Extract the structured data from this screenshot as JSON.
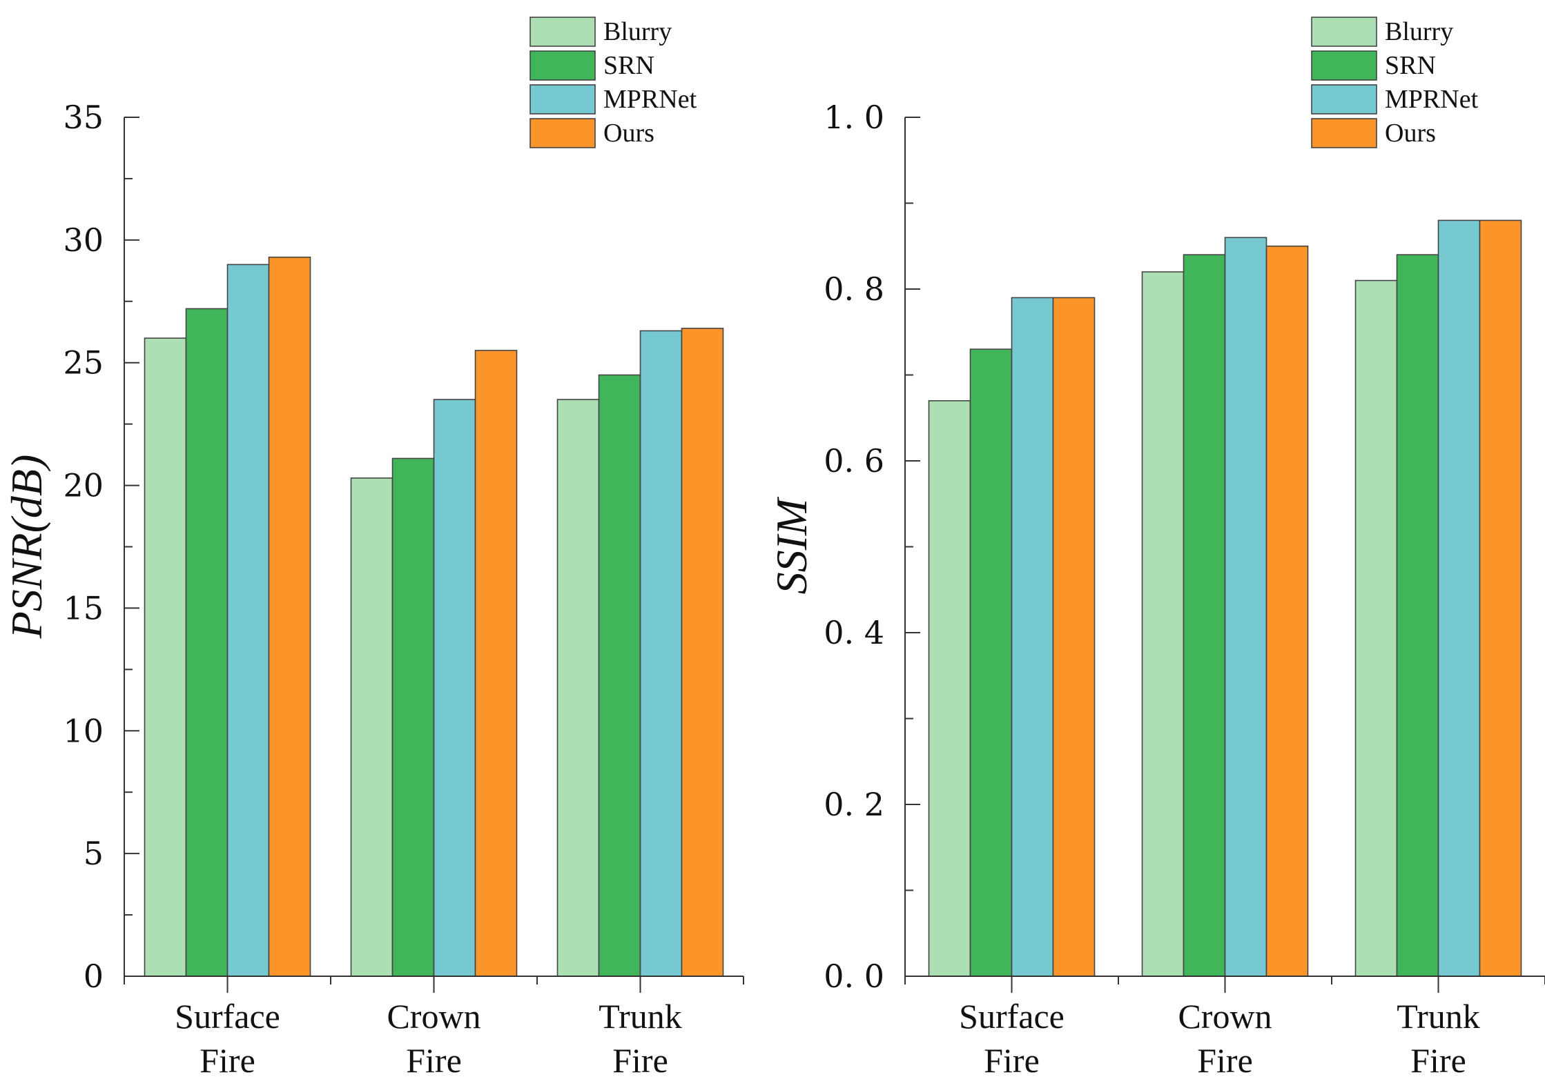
{
  "chart_data": [
    {
      "type": "bar",
      "ylabel": "PSNR(dB)",
      "ylim": [
        0,
        35
      ],
      "yticks": [
        0,
        5,
        10,
        15,
        20,
        25,
        30,
        35
      ],
      "tick_labels": [
        "0",
        "5",
        "10",
        "15",
        "20",
        "25",
        "30",
        "35"
      ],
      "categories": [
        [
          "Surface",
          "Fire"
        ],
        [
          "Crown",
          "Fire"
        ],
        [
          "Trunk",
          "Fire"
        ]
      ],
      "legend_position": "top-right",
      "series": [
        {
          "name": "Blurry",
          "color": "#acdfb4",
          "values": [
            26.0,
            20.3,
            23.5
          ]
        },
        {
          "name": "SRN",
          "color": "#41b55a",
          "values": [
            27.2,
            21.1,
            24.5
          ]
        },
        {
          "name": "MPRNet",
          "color": "#77c9d1",
          "values": [
            29.0,
            23.5,
            26.3
          ]
        },
        {
          "name": "Ours",
          "color": "#fb9429",
          "values": [
            29.3,
            25.5,
            26.4
          ]
        }
      ]
    },
    {
      "type": "bar",
      "ylabel": "SSIM",
      "ylim": [
        0,
        1.0
      ],
      "yticks": [
        0,
        0.2,
        0.4,
        0.6,
        0.8,
        1.0
      ],
      "tick_labels": [
        "0. 0",
        "0. 2",
        "0. 4",
        "0. 6",
        "0. 8",
        "1. 0"
      ],
      "categories": [
        [
          "Surface",
          "Fire"
        ],
        [
          "Crown",
          "Fire"
        ],
        [
          "Trunk",
          "Fire"
        ]
      ],
      "legend_position": "top-right",
      "series": [
        {
          "name": "Blurry",
          "color": "#acdfb4",
          "values": [
            0.67,
            0.82,
            0.81
          ]
        },
        {
          "name": "SRN",
          "color": "#41b55a",
          "values": [
            0.73,
            0.84,
            0.84
          ]
        },
        {
          "name": "MPRNet",
          "color": "#77c9d1",
          "values": [
            0.79,
            0.86,
            0.88
          ]
        },
        {
          "name": "Ours",
          "color": "#fb9429",
          "values": [
            0.79,
            0.85,
            0.88
          ]
        }
      ]
    }
  ]
}
